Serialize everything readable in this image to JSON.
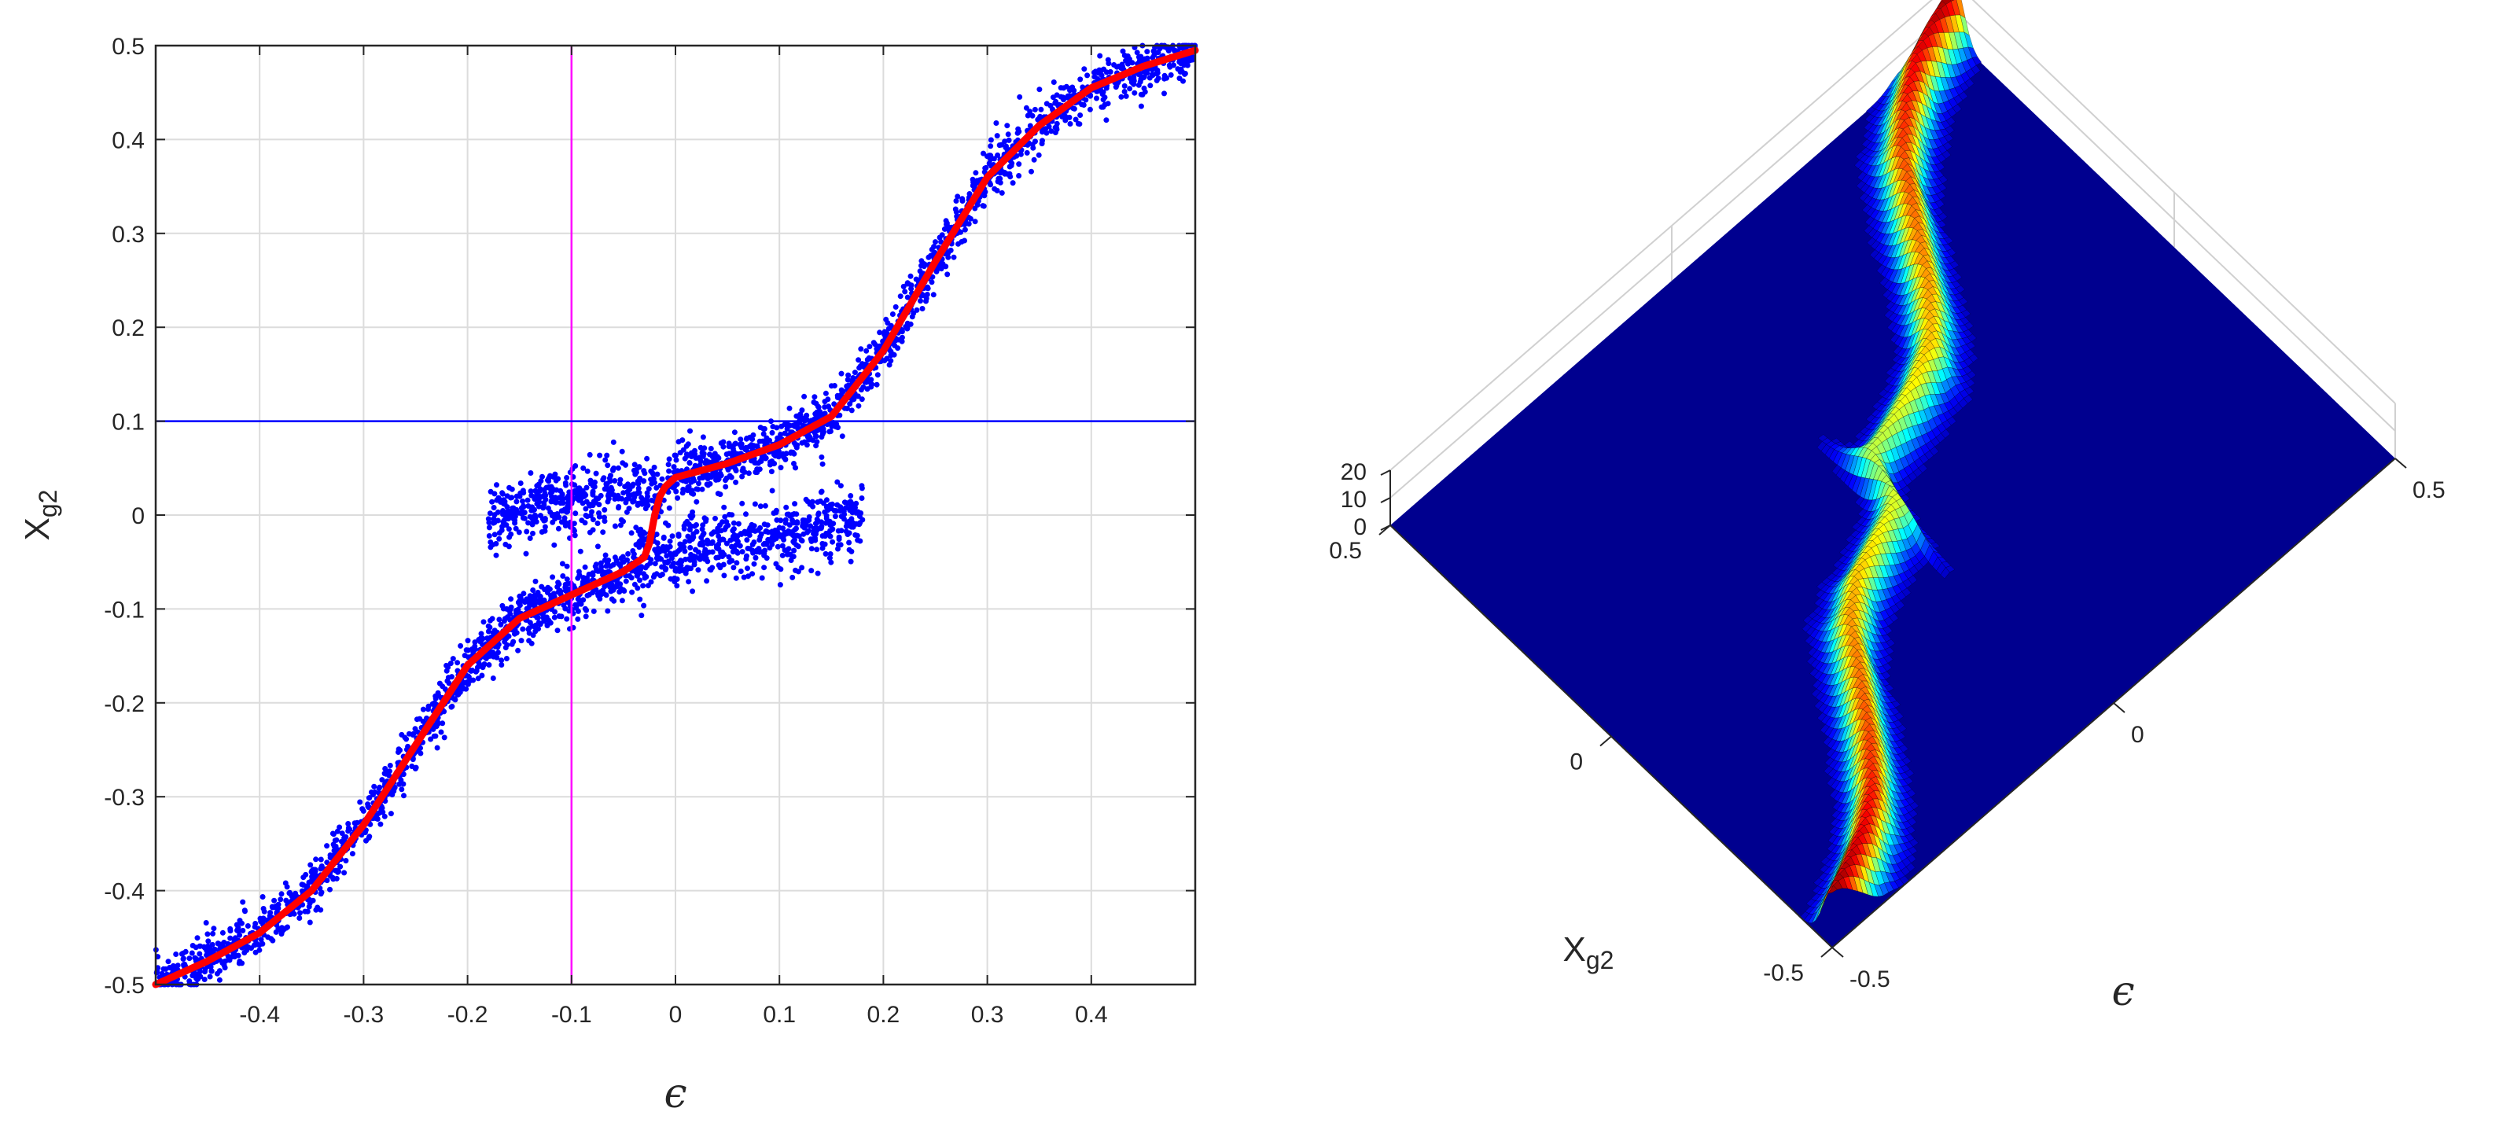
{
  "chart_data": [
    {
      "type": "scatter",
      "title": "",
      "xlabel": "ϵ",
      "ylabel": "X",
      "ylabel_subscript": "g2",
      "xlim": [
        -0.5,
        0.5
      ],
      "ylim": [
        -0.5,
        0.5
      ],
      "grid": true,
      "x_ticks": [
        -0.4,
        -0.3,
        -0.2,
        -0.1,
        0,
        0.1,
        0.2,
        0.3,
        0.4
      ],
      "x_tick_labels": [
        "-0.4",
        "-0.3",
        "-0.2",
        "-0.1",
        "0",
        "0.1",
        "0.2",
        "0.3",
        "0.4"
      ],
      "y_ticks": [
        -0.5,
        -0.4,
        -0.3,
        -0.2,
        -0.1,
        0,
        0.1,
        0.2,
        0.3,
        0.4,
        0.5
      ],
      "y_tick_labels": [
        "-0.5",
        "-0.4",
        "-0.3",
        "-0.2",
        "-0.1",
        "0",
        "0.1",
        "0.2",
        "0.3",
        "0.4",
        "0.5"
      ],
      "reference_lines": [
        {
          "orientation": "vertical",
          "x": -0.1,
          "color": "#ff00ff"
        },
        {
          "orientation": "horizontal",
          "y": 0.1,
          "color": "#0000ff"
        }
      ],
      "scatter_color": "#0000ff",
      "series": [
        {
          "kind": "scatter",
          "color": "#0000ff",
          "description_clusters": [
            {
              "x_range": [
                -0.5,
                -0.04
              ],
              "center_curve": "lower",
              "spread": 0.03
            },
            {
              "x_range": [
                -0.04,
                0.18
              ],
              "center_curve": "lower",
              "spread": 0.04
            },
            {
              "x_range": [
                -0.18,
                0.03
              ],
              "center_curve": "upper",
              "spread": 0.04
            },
            {
              "x_range": [
                0.03,
                0.5
              ],
              "center_curve": "upper",
              "spread": 0.03
            }
          ]
        },
        {
          "kind": "line",
          "color": "#ff0000",
          "x": [
            -0.5,
            -0.45,
            -0.4,
            -0.35,
            -0.3,
            -0.25,
            -0.2,
            -0.15,
            -0.1,
            -0.05,
            -0.03,
            -0.025,
            -0.02,
            -0.015,
            -0.01,
            0,
            0.05,
            0.1,
            0.15,
            0.2,
            0.25,
            0.3,
            0.35,
            0.4,
            0.45,
            0.5
          ],
          "y": [
            -0.5,
            -0.475,
            -0.445,
            -0.4,
            -0.33,
            -0.245,
            -0.16,
            -0.11,
            -0.085,
            -0.06,
            -0.045,
            -0.03,
            0.0,
            0.02,
            0.03,
            0.04,
            0.055,
            0.075,
            0.105,
            0.175,
            0.27,
            0.36,
            0.415,
            0.455,
            0.478,
            0.495
          ]
        }
      ]
    },
    {
      "type": "surface",
      "title": "",
      "xlabel": "ϵ",
      "ylabel": "X",
      "ylabel_subscript": "g2",
      "xlim": [
        -0.5,
        0.5
      ],
      "ylim": [
        -0.5,
        0.5
      ],
      "zlim": [
        0,
        20
      ],
      "colormap": "jet",
      "x_tick_labels": [
        "-0.5",
        "0",
        "0.5"
      ],
      "y_tick_labels": [
        "-0.5",
        "0",
        "0.5"
      ],
      "z_tick_labels": [
        "0",
        "10",
        "20"
      ],
      "ridge_center_x": [
        -0.5,
        -0.45,
        -0.4,
        -0.35,
        -0.3,
        -0.25,
        -0.2,
        -0.15,
        -0.1,
        -0.05,
        -0.03,
        -0.025,
        -0.02,
        -0.015,
        -0.01,
        0,
        0.05,
        0.1,
        0.15,
        0.2,
        0.25,
        0.3,
        0.35,
        0.4,
        0.45,
        0.5
      ],
      "ridge_center_y": [
        -0.5,
        -0.475,
        -0.445,
        -0.4,
        -0.33,
        -0.245,
        -0.16,
        -0.11,
        -0.085,
        -0.06,
        -0.045,
        -0.03,
        0.0,
        0.02,
        0.03,
        0.04,
        0.055,
        0.075,
        0.105,
        0.175,
        0.27,
        0.36,
        0.415,
        0.455,
        0.478,
        0.495
      ],
      "peak_height": 20
    }
  ]
}
